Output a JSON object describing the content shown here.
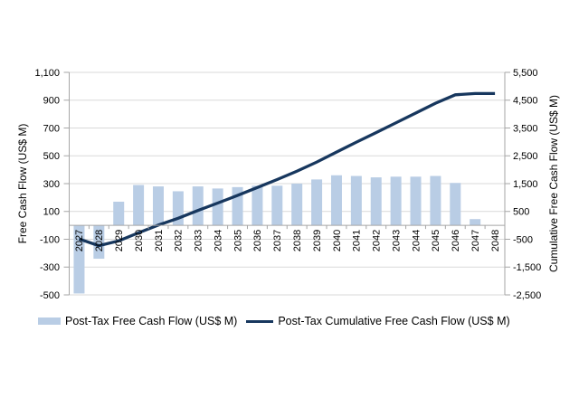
{
  "chart_data": {
    "type": "bar+line combo",
    "title": "",
    "x": [
      2027,
      2028,
      2029,
      2030,
      2031,
      2032,
      2033,
      2034,
      2035,
      2036,
      2037,
      2038,
      2039,
      2040,
      2041,
      2042,
      2043,
      2044,
      2045,
      2046,
      2047,
      2048
    ],
    "series": [
      {
        "name": "Post-Tax Free Cash Flow (US$ M)",
        "type": "bar",
        "axis": "left",
        "color": "#b9cde5",
        "values": [
          -490,
          -240,
          170,
          290,
          280,
          245,
          280,
          265,
          275,
          285,
          285,
          300,
          330,
          360,
          355,
          345,
          350,
          350,
          355,
          305,
          45,
          0
        ]
      },
      {
        "name": "Post-Tax Cumulative Free Cash Flow (US$ M)",
        "type": "line",
        "axis": "right",
        "color": "#17375e",
        "values": [
          -490,
          -730,
          -560,
          -270,
          10,
          255,
          535,
          800,
          1075,
          1360,
          1645,
          1945,
          2275,
          2635,
          2990,
          3335,
          3685,
          4035,
          4390,
          4695,
          4740,
          4740
        ]
      }
    ],
    "left_axis": {
      "label": "Free Cash Flow (US$ M)",
      "min": -500,
      "max": 1100,
      "step": 200,
      "tick_labels": [
        "1,100",
        "900",
        "700",
        "500",
        "300",
        "100",
        "-100",
        "-300",
        "-500"
      ]
    },
    "right_axis": {
      "label": "Cumulative Free Cash Flow (US$ M)",
      "min": -2500,
      "max": 5500,
      "step": 1000,
      "tick_labels": [
        "5,500",
        "4,500",
        "3,500",
        "2,500",
        "1,500",
        "500",
        "-500",
        "-1,500",
        "-2,500"
      ]
    },
    "grid": true,
    "legend_position": "bottom",
    "colors": {
      "grid": "#d9d9d9",
      "axis": "#a6a6a6",
      "text": "#000000",
      "background": "#ffffff"
    }
  }
}
